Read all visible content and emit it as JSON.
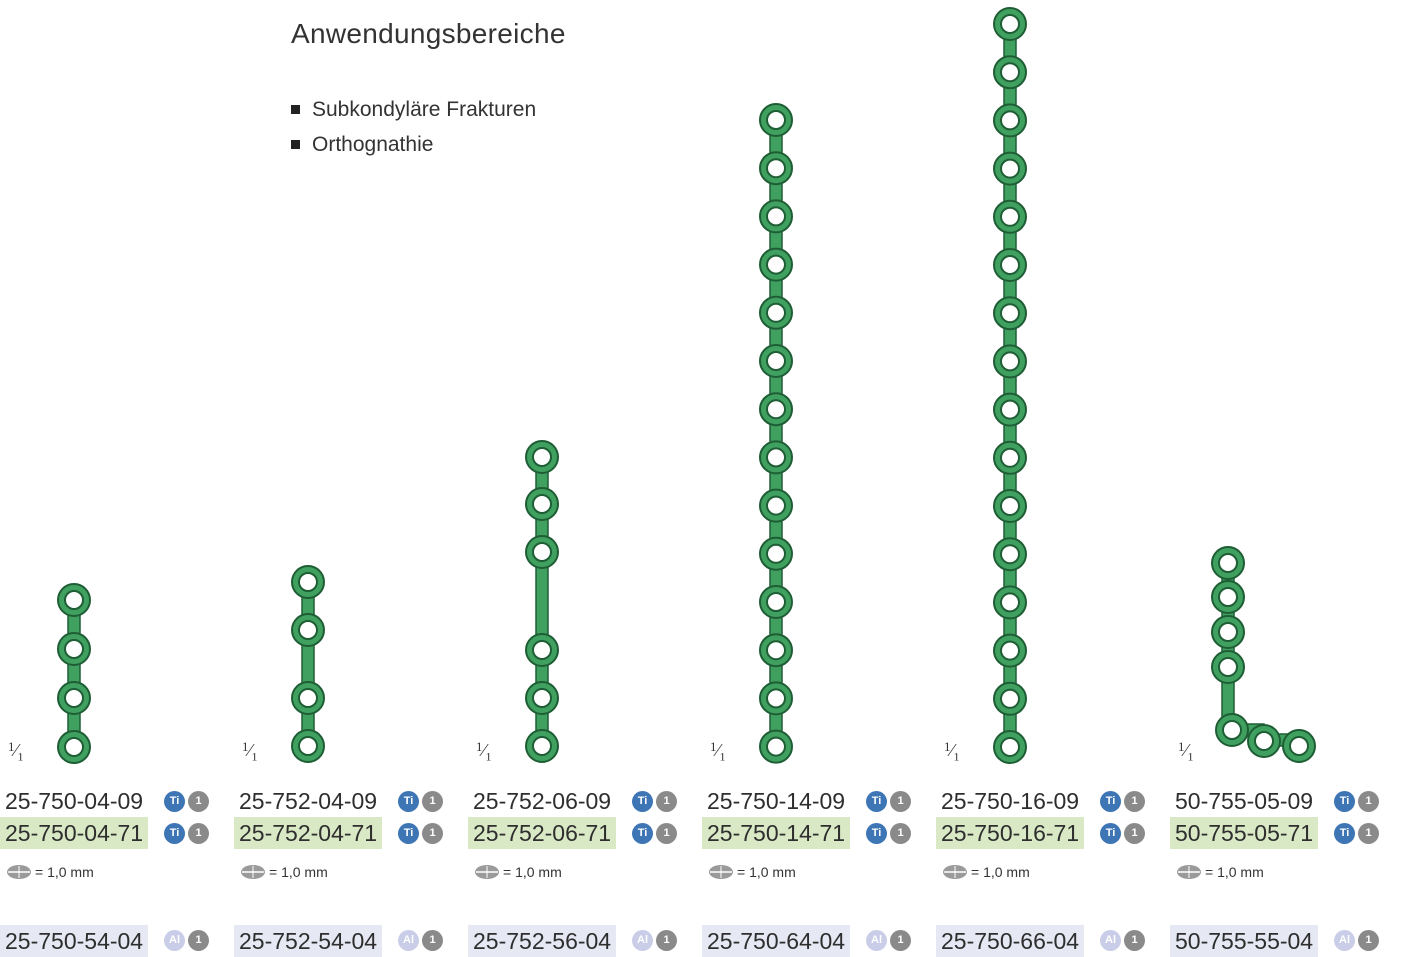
{
  "heading": "Anwendungsbereiche",
  "applications": [
    "Subkondyläre Frakturen",
    "Orthognathie"
  ],
  "scale_label": {
    "num": "1",
    "den": "1"
  },
  "colors": {
    "plate_green": "#3fa060",
    "highlight_green": "#d9e8c5",
    "highlight_lavender": "#e6e8f4",
    "ti_blue": "#3d75b5",
    "badge_gray": "#8a8a8a",
    "al_light": "#c9cde8"
  },
  "products": [
    {
      "code_ti": "25-750-04-09",
      "code_ti_green": "25-750-04-71",
      "thickness": "= 1,0 mm",
      "code_al": "25-750-54-04",
      "badge_ti": "Ti",
      "badge_n": "1",
      "badge_al": "Al",
      "holes": 4,
      "gap": false
    },
    {
      "code_ti": "25-752-04-09",
      "code_ti_green": "25-752-04-71",
      "thickness": "= 1,0 mm",
      "code_al": "25-752-54-04",
      "badge_ti": "Ti",
      "badge_n": "1",
      "badge_al": "Al",
      "holes": 4,
      "gap": true
    },
    {
      "code_ti": "25-752-06-09",
      "code_ti_green": "25-752-06-71",
      "thickness": "= 1,0 mm",
      "code_al": "25-752-56-04",
      "badge_ti": "Ti",
      "badge_n": "1",
      "badge_al": "Al",
      "holes": 6,
      "gap": true
    },
    {
      "code_ti": "25-750-14-09",
      "code_ti_green": "25-750-14-71",
      "thickness": "= 1,0 mm",
      "code_al": "25-750-64-04",
      "badge_ti": "Ti",
      "badge_n": "1",
      "badge_al": "Al",
      "holes": 14,
      "gap": false
    },
    {
      "code_ti": "25-750-16-09",
      "code_ti_green": "25-750-16-71",
      "thickness": "= 1,0 mm",
      "code_al": "25-750-66-04",
      "badge_ti": "Ti",
      "badge_n": "1",
      "badge_al": "Al",
      "holes": 16,
      "gap": false
    },
    {
      "code_ti": "50-755-05-09",
      "code_ti_green": "50-755-05-71",
      "thickness": "= 1,0 mm",
      "code_al": "50-755-55-04",
      "badge_ti": "Ti",
      "badge_n": "1",
      "badge_al": "Al",
      "holes": 7,
      "gap": false
    }
  ]
}
